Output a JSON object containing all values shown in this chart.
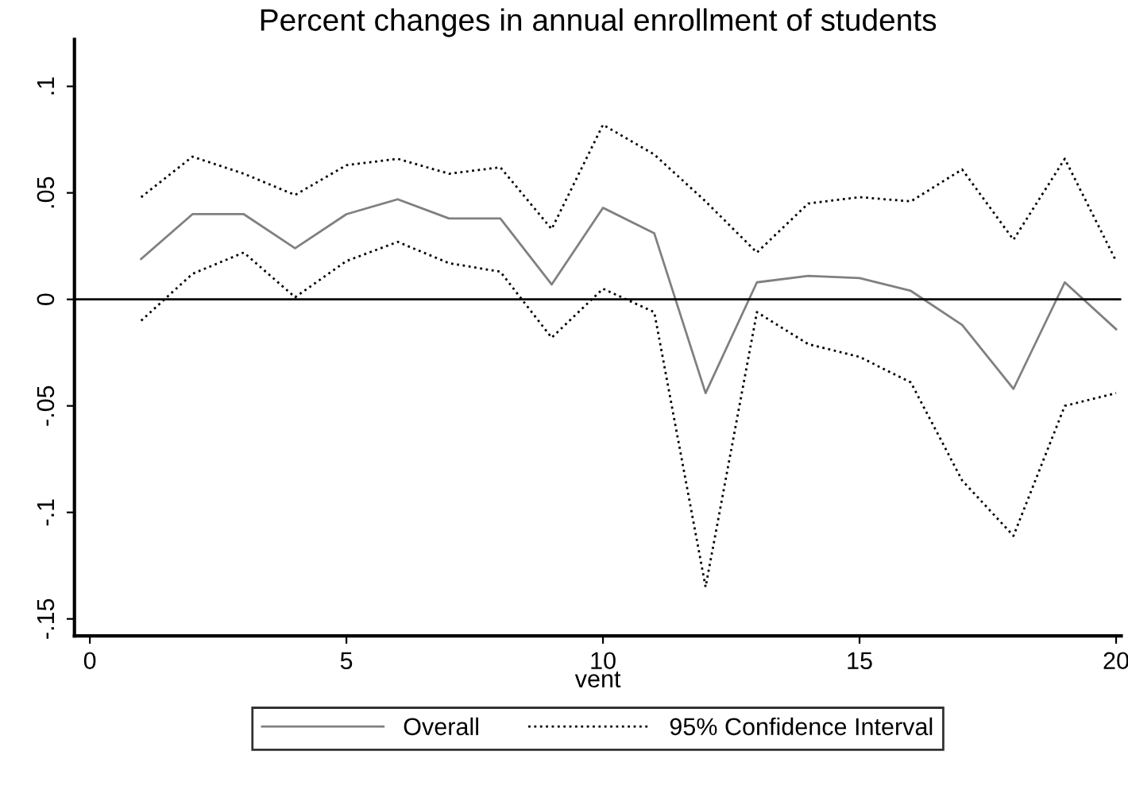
{
  "chart_data": {
    "type": "line",
    "title": "Percent changes in annual enrollment of students",
    "xlabel": "vent",
    "x": [
      1,
      2,
      3,
      4,
      5,
      6,
      7,
      8,
      9,
      10,
      11,
      12,
      13,
      14,
      15,
      16,
      17,
      18,
      19,
      20
    ],
    "series": [
      {
        "name": "Overall",
        "color": "#808080",
        "line_style": "solid",
        "values": [
          0.019,
          0.04,
          0.04,
          0.024,
          0.04,
          0.047,
          0.038,
          0.038,
          0.007,
          0.043,
          0.031,
          -0.044,
          0.008,
          0.011,
          0.01,
          0.004,
          -0.012,
          -0.042,
          0.008,
          -0.014
        ]
      },
      {
        "name": "95% Confidence Interval",
        "color": "#000000",
        "line_style": "dotted",
        "values": [
          0.048,
          0.067,
          0.059,
          0.049,
          0.063,
          0.066,
          0.059,
          0.062,
          0.033,
          0.082,
          0.068,
          0.046,
          0.022,
          0.045,
          0.048,
          0.046,
          0.061,
          0.028,
          0.066,
          0.018
        ]
      },
      {
        "color": "#000000",
        "line_style": "dotted",
        "values": [
          -0.01,
          0.012,
          0.022,
          0.001,
          0.018,
          0.027,
          0.017,
          0.013,
          -0.018,
          0.005,
          -0.006,
          -0.135,
          -0.006,
          -0.021,
          -0.027,
          -0.039,
          -0.085,
          -0.111,
          -0.05,
          -0.044
        ]
      }
    ],
    "xlim": [
      -0.3,
      20.1
    ],
    "xticks": [
      0,
      5,
      10,
      15,
      20
    ],
    "ylim": [
      -0.158,
      0.122
    ],
    "yticks": [
      {
        "value": -0.15,
        "label": "-.15"
      },
      {
        "value": -0.1,
        "label": "-.1"
      },
      {
        "value": -0.05,
        "label": "-.05"
      },
      {
        "value": 0,
        "label": "0"
      },
      {
        "value": 0.05,
        "label": ".05"
      },
      {
        "value": 0.1,
        "label": ".1"
      }
    ],
    "ref_lines": [
      {
        "axis": "y",
        "value": 0,
        "color": "#000000"
      }
    ],
    "grid": false,
    "legend": "bottom",
    "marker": "none"
  }
}
